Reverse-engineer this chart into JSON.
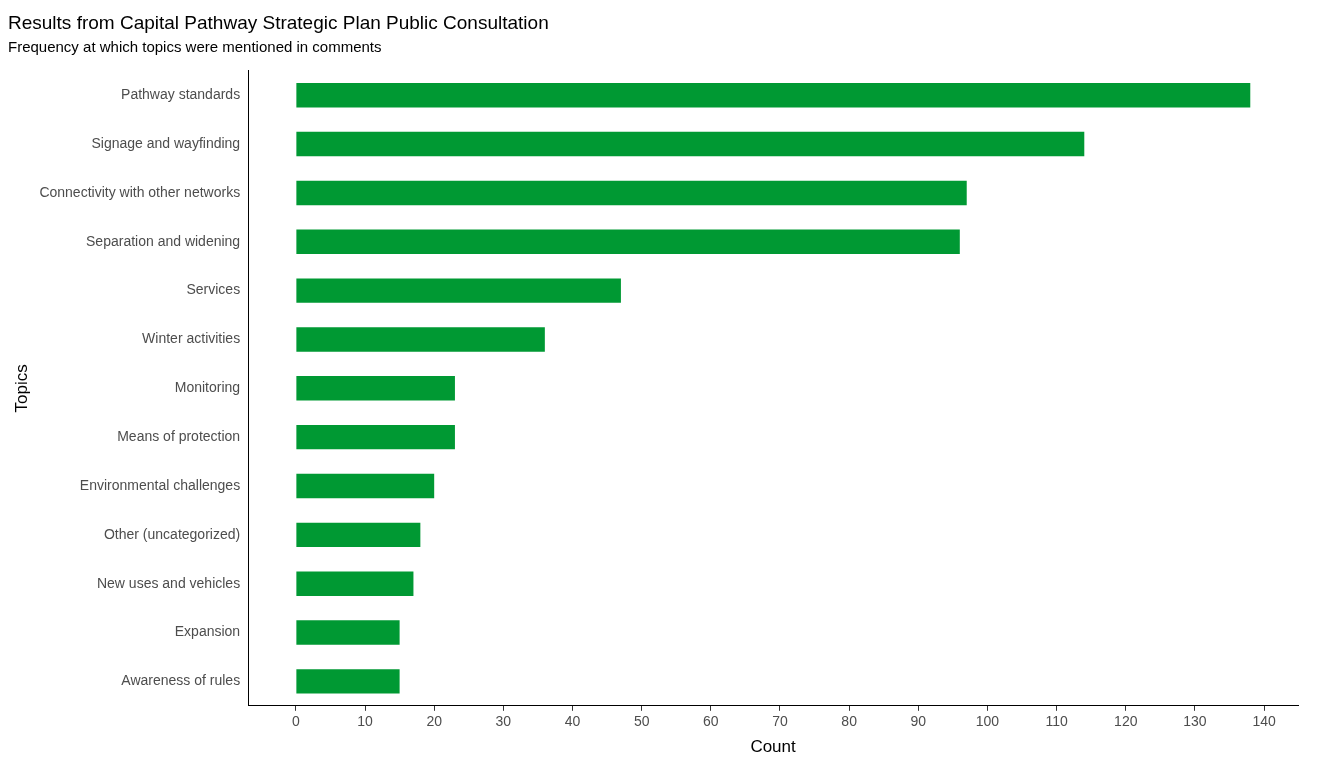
{
  "chart_data": {
    "type": "bar",
    "orientation": "horizontal",
    "title": "Results from Capital Pathway Strategic Plan Public Consultation",
    "subtitle": "Frequency at which topics were mentioned in comments",
    "xlabel": "Count",
    "ylabel": "Topics",
    "categories": [
      "Pathway standards",
      "Signage and wayfinding",
      "Connectivity with other networks",
      "Separation and widening",
      "Services",
      "Winter activities",
      "Monitoring",
      "Means of protection",
      "Environmental challenges",
      "Other (uncategorized)",
      "New uses and vehicles",
      "Expansion",
      "Awareness of rules"
    ],
    "values": [
      138,
      114,
      97,
      96,
      47,
      36,
      23,
      23,
      20,
      18,
      17,
      15,
      15
    ],
    "color": "#009933",
    "xlim": [
      -6.9,
      144.9
    ],
    "xticks": [
      0,
      10,
      20,
      30,
      40,
      50,
      60,
      70,
      80,
      90,
      100,
      110,
      120,
      130,
      140
    ],
    "grid": false,
    "legend": false
  }
}
